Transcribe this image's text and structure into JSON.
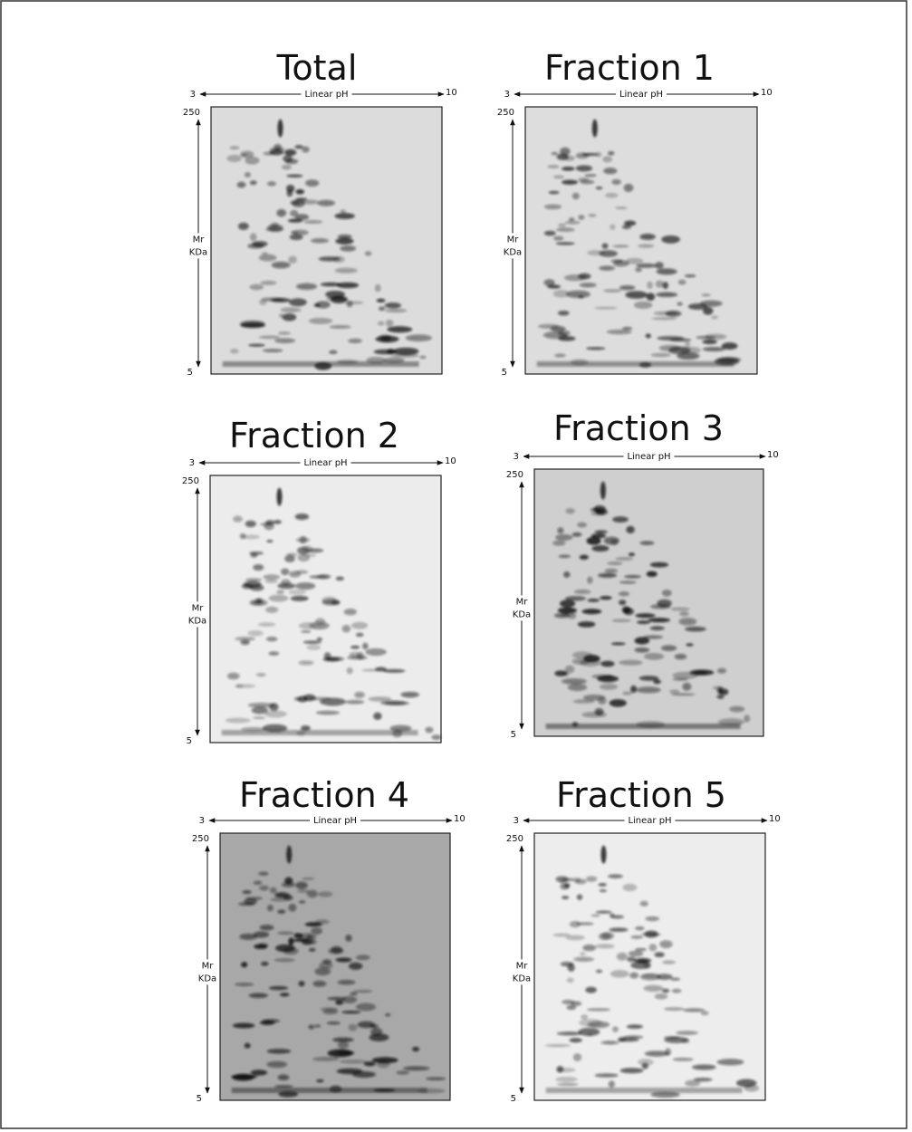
{
  "panels": [
    {
      "title": "Total",
      "ph_axis": {
        "min": 3,
        "label": "Linear pH",
        "max": 10
      },
      "mass_axis": {
        "top": 250,
        "label": [
          "Mr",
          "KDa"
        ],
        "bottom": 5
      }
    },
    {
      "title": "Fraction 1",
      "ph_axis": {
        "min": 3,
        "label": "Linear pH",
        "max": 10
      },
      "mass_axis": {
        "top": 250,
        "label": [
          "Mr",
          "KDa"
        ],
        "bottom": 5
      }
    },
    {
      "title": "Fraction 2",
      "ph_axis": {
        "min": 3,
        "label": "Linear pH",
        "max": 10
      },
      "mass_axis": {
        "top": 250,
        "label": [
          "Mr",
          "KDa"
        ],
        "bottom": 5
      }
    },
    {
      "title": "Fraction 3",
      "ph_axis": {
        "min": 3,
        "label": "Linear pH",
        "max": 10
      },
      "mass_axis": {
        "top": 250,
        "label": [
          "Mr",
          "KDa"
        ],
        "bottom": 5
      }
    },
    {
      "title": "Fraction 4",
      "ph_axis": {
        "min": 3,
        "label": "Linear pH",
        "max": 10
      },
      "mass_axis": {
        "top": 250,
        "label": [
          "Mr",
          "KDa"
        ],
        "bottom": 5
      }
    },
    {
      "title": "Fraction 5",
      "ph_axis": {
        "min": 3,
        "label": "Linear pH",
        "max": 10
      },
      "mass_axis": {
        "top": 250,
        "label": [
          "Mr",
          "KDa"
        ],
        "bottom": 5
      }
    }
  ]
}
